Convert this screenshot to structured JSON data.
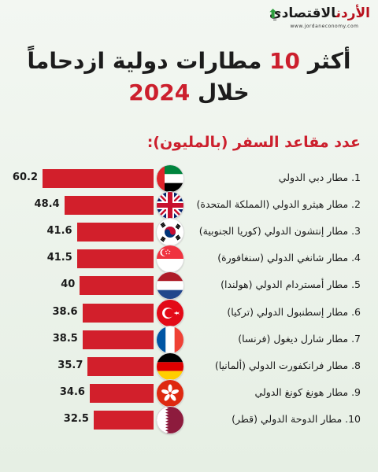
{
  "logo": {
    "name_red": "الأردن",
    "name_dark": "الاقتصادي",
    "url": "www.jordaneconomy.com"
  },
  "title": {
    "before": "أكثر",
    "number": "10",
    "after": "مطارات دولية ازدحاماً",
    "line2_prefix": "خلال",
    "year": "2024"
  },
  "subtitle": "عدد مقاعد السفر (بالمليون):",
  "colors": {
    "accent": "#d21f2b",
    "text": "#1a1a1a",
    "background": "#eef4ec"
  },
  "chart_data": {
    "type": "bar",
    "orientation": "horizontal",
    "unit": "million seats",
    "categories": [
      "1. مطار دبي الدولي",
      "2. مطار هيثرو الدولي (المملكة المتحدة)",
      "3. مطار إنتشون الدولي (كوريا الجنوبية)",
      "4. مطار شانغي الدولي (سنغافورة)",
      "5. مطار أمستردام الدولي (هولندا)",
      "6. مطار إسطنبول الدولي (تركيا)",
      "7. مطار شارل ديغول (فرنسا)",
      "8. مطار فرانكفورت الدولي (ألمانيا)",
      "9. مطار هونغ كونغ الدولي",
      "10. مطار الدوحة الدولي (قطر)"
    ],
    "values": [
      60.2,
      48.4,
      41.6,
      41.5,
      40,
      38.6,
      38.5,
      35.7,
      34.6,
      32.5
    ],
    "value_labels": [
      "60.2",
      "48.4",
      "41.6",
      "41.5",
      "40",
      "38.6",
      "38.5",
      "35.7",
      "34.6",
      "32.5"
    ],
    "flags": [
      "uae-flag-icon",
      "uk-flag-icon",
      "south-korea-flag-icon",
      "singapore-flag-icon",
      "netherlands-flag-icon",
      "turkey-flag-icon",
      "france-flag-icon",
      "germany-flag-icon",
      "hong-kong-flag-icon",
      "qatar-flag-icon"
    ]
  }
}
